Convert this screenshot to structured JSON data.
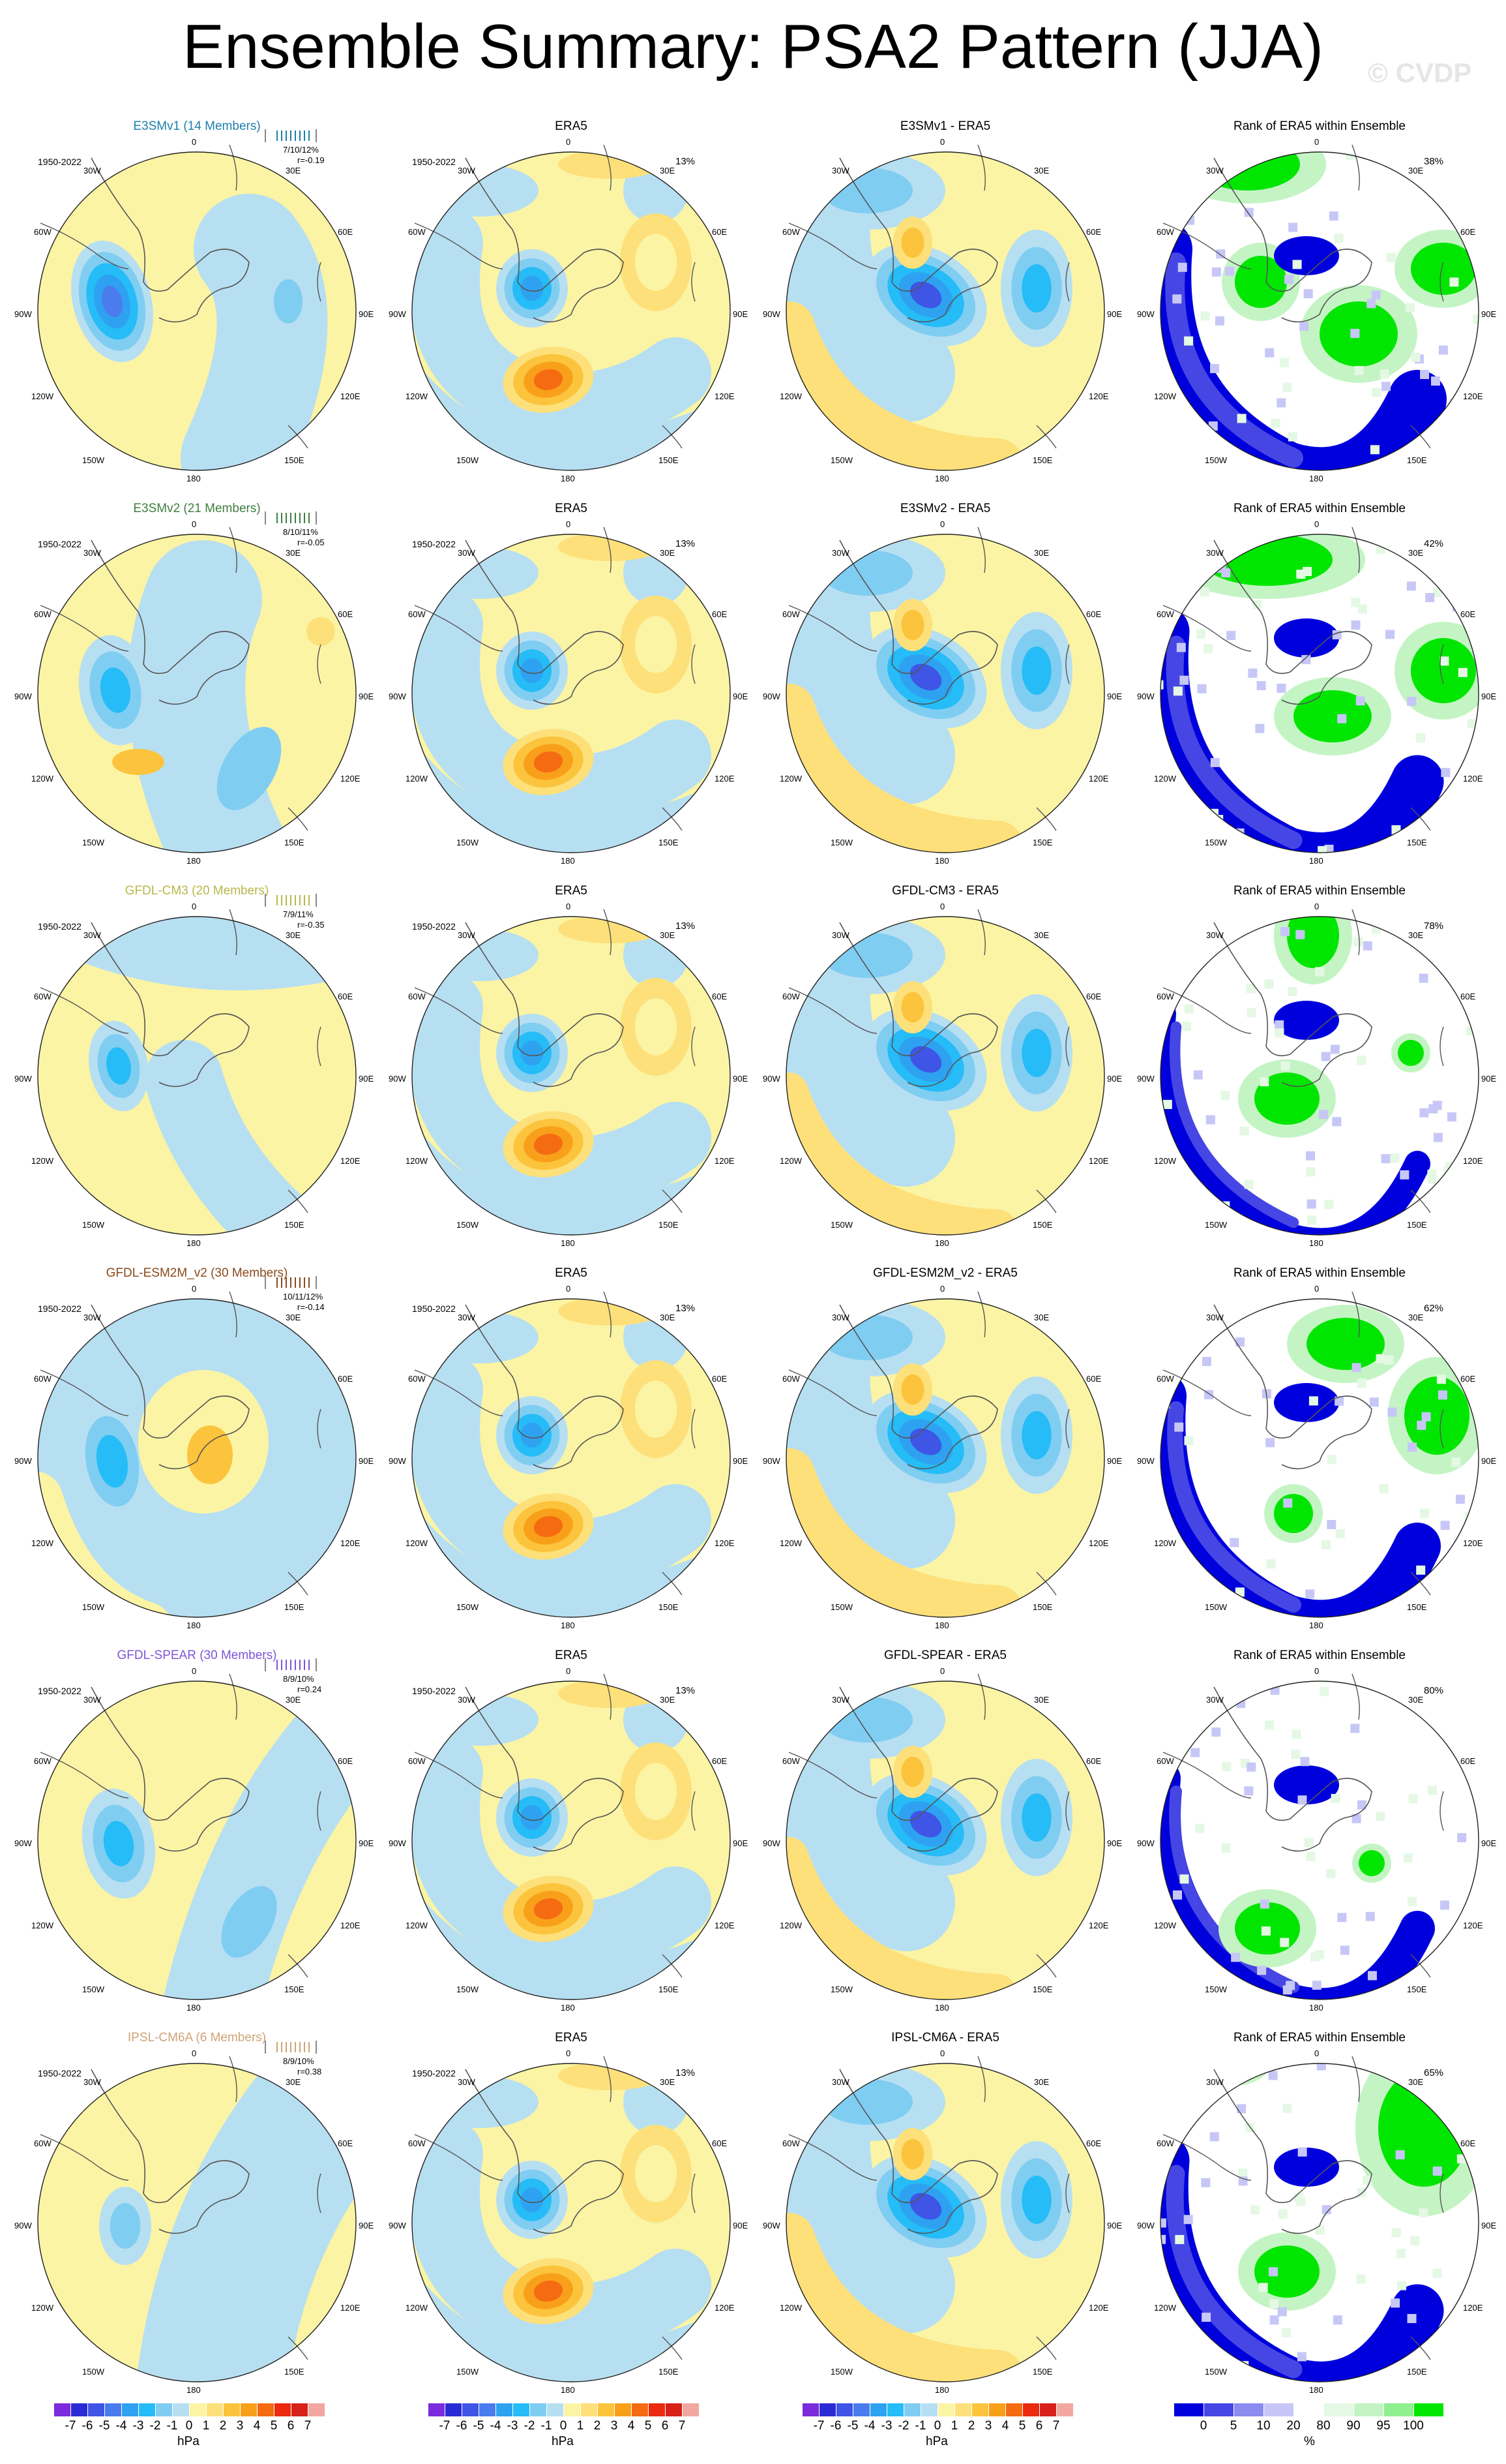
{
  "page": {
    "title": "Ensemble Summary: PSA2 Pattern (JJA)",
    "watermark": "© CVDP"
  },
  "colors": {
    "blue_scale": [
      "#2b2bd6",
      "#3f55e6",
      "#4a7cee",
      "#2ea2f0",
      "#25bcf7",
      "#80cdf2",
      "#b7dff2"
    ],
    "warm_scale": [
      "#fbf4a4",
      "#fde07a",
      "#fbc43c",
      "#f9a01a",
      "#f56b12",
      "#ec2a10",
      "#d7211a",
      "#f2a8a0"
    ],
    "rank_scale": [
      "#0000dd",
      "#4646e5",
      "#8b8bf0",
      "#c7c7f7",
      "#ffffff",
      "#e4f8e4",
      "#c4f4c4",
      "#8ff08f",
      "#00e600"
    ],
    "model_title_colors": {
      "E3SMv1": "#1d7fa8",
      "E3SMv2": "#3f7f3f",
      "GFDL-CM3": "#b8b84a",
      "GFDL-ESM2M_v2": "#8a4a1c",
      "GFDL-SPEAR": "#7d55d6",
      "IPSL-CM6A": "#cfa478"
    }
  },
  "geo_labels": {
    "top": "0",
    "top_left": "30W",
    "top_right": "30E",
    "upper_left": "60W",
    "upper_right": "60E",
    "left": "90W",
    "right": "90E",
    "lower_left": "120W",
    "lower_right": "120E",
    "bottom_left": "150W",
    "bottom_right": "150E",
    "bottom": "180"
  },
  "years": "1950-2022",
  "rows": [
    {
      "model_title": "E3SMv1 (14 Members)",
      "model_stats": "7/10/12%",
      "model_corr": "r=-0.19",
      "era_pct": "13%",
      "diff_title": "E3SMv1 - ERA5",
      "rank_title": "Rank of ERA5 within Ensemble",
      "rank_pct": "38%"
    },
    {
      "model_title": "E3SMv2 (21 Members)",
      "model_stats": "8/10/11%",
      "model_corr": "r=-0.05",
      "era_pct": "13%",
      "diff_title": "E3SMv2 - ERA5",
      "rank_title": "Rank of ERA5 within Ensemble",
      "rank_pct": "42%"
    },
    {
      "model_title": "GFDL-CM3 (20 Members)",
      "model_stats": "7/9/11%",
      "model_corr": "r=-0.35",
      "era_pct": "13%",
      "diff_title": "GFDL-CM3 - ERA5",
      "rank_title": "Rank of ERA5 within Ensemble",
      "rank_pct": "78%"
    },
    {
      "model_title": "GFDL-ESM2M_v2 (30 Members)",
      "model_stats": "10/11/12%",
      "model_corr": "r=-0.14",
      "era_pct": "13%",
      "diff_title": "GFDL-ESM2M_v2 - ERA5",
      "rank_title": "Rank of ERA5 within Ensemble",
      "rank_pct": "62%"
    },
    {
      "model_title": "GFDL-SPEAR (30 Members)",
      "model_stats": "8/9/10%",
      "model_corr": "r=0.24",
      "era_pct": "13%",
      "diff_title": "GFDL-SPEAR - ERA5",
      "rank_title": "Rank of ERA5 within Ensemble",
      "rank_pct": "80%"
    },
    {
      "model_title": "IPSL-CM6A (6 Members)",
      "model_stats": "8/9/10%",
      "model_corr": "r=0.38",
      "era_pct": "13%",
      "diff_title": "IPSL-CM6A - ERA5",
      "rank_title": "Rank of ERA5 within Ensemble",
      "rank_pct": "65%"
    }
  ],
  "era_title": "ERA5",
  "colorbars": {
    "hpa_labels": [
      "-7",
      "-6",
      "-5",
      "-4",
      "-3",
      "-2",
      "-1",
      "0",
      "1",
      "2",
      "3",
      "4",
      "5",
      "6",
      "7"
    ],
    "hpa_unit": "hPa",
    "rank_labels": [
      "0",
      "5",
      "10",
      "20",
      "80",
      "90",
      "95",
      "100"
    ],
    "rank_unit": "%"
  },
  "chart_data": [
    {
      "type": "heatmap",
      "title": "Ensemble Summary: PSA2 Pattern (JJA)",
      "description_of_grid": "6 rows (models) x 4 columns (model ensemble mean pattern, ERA5 pattern, model minus ERA5, rank of ERA5 within ensemble); polar stereographic maps of Southern Hemisphere",
      "units": "hPa",
      "contour_levels": [
        -7,
        -6,
        -5,
        -4,
        -3,
        -2,
        -1,
        0,
        1,
        2,
        3,
        4,
        5,
        6,
        7
      ],
      "rank_levels_percent": [
        0,
        5,
        10,
        20,
        80,
        90,
        95,
        100
      ],
      "period": "1950-2022",
      "rows": [
        {
          "model": "E3SMv1",
          "members": 14,
          "pct_variance_explained": "7/10/12%",
          "pattern_correlation": -0.19,
          "era5_pct_variance": 13,
          "rank_percent": 38
        },
        {
          "model": "E3SMv2",
          "members": 21,
          "pct_variance_explained": "8/10/11%",
          "pattern_correlation": -0.05,
          "era5_pct_variance": 13,
          "rank_percent": 42
        },
        {
          "model": "GFDL-CM3",
          "members": 20,
          "pct_variance_explained": "7/9/11%",
          "pattern_correlation": -0.35,
          "era5_pct_variance": 13,
          "rank_percent": 78
        },
        {
          "model": "GFDL-ESM2M_v2",
          "members": 30,
          "pct_variance_explained": "10/11/12%",
          "pattern_correlation": -0.14,
          "era5_pct_variance": 13,
          "rank_percent": 62
        },
        {
          "model": "GFDL-SPEAR",
          "members": 30,
          "pct_variance_explained": "8/9/10%",
          "pattern_correlation": 0.24,
          "era5_pct_variance": 13,
          "rank_percent": 80
        },
        {
          "model": "IPSL-CM6A",
          "members": 6,
          "pct_variance_explained": "8/9/10%",
          "pattern_correlation": 0.38,
          "era5_pct_variance": 13,
          "rank_percent": 65
        }
      ]
    }
  ]
}
